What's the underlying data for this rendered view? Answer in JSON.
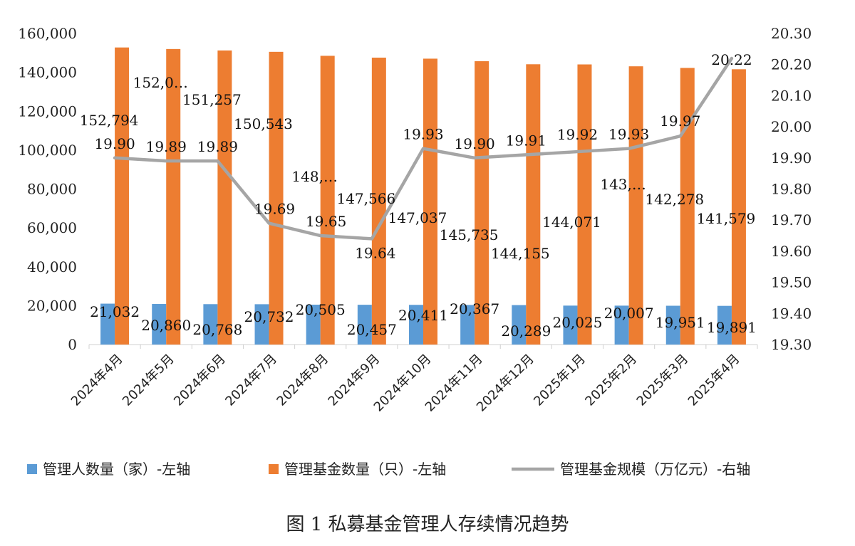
{
  "chart_data": {
    "type": "bar",
    "categories": [
      "2024年4月",
      "2024年5月",
      "2024年6月",
      "2024年7月",
      "2024年8月",
      "2024年9月",
      "2024年10月",
      "2024年11月",
      "2024年12月",
      "2025年1月",
      "2025年2月",
      "2025年3月",
      "2025年4月"
    ],
    "series": [
      {
        "name": "管理人数量（家）-左轴",
        "type": "bar",
        "axis": "left",
        "color": "#5b9bd5",
        "values": [
          21032,
          20860,
          20768,
          20732,
          20505,
          20457,
          20411,
          20367,
          20289,
          20025,
          20007,
          19951,
          19891
        ],
        "labels": [
          "21,032",
          "20,860",
          "20,768",
          "20,732",
          "20,505",
          "20,457",
          "20,411",
          "20,367",
          "20,289",
          "20,025",
          "20,007",
          "19,951",
          "19,891"
        ]
      },
      {
        "name": "管理基金数量（只）-左轴",
        "type": "bar",
        "axis": "left",
        "color": "#ed7d31",
        "values": [
          152794,
          152000,
          151257,
          150543,
          148500,
          147566,
          147037,
          145735,
          144155,
          144071,
          143100,
          142278,
          141579
        ],
        "labels": [
          "152,794",
          "152,0…",
          "151,257",
          "150,543",
          "148,…",
          "147,566",
          "147,037",
          "145,735",
          "144,155",
          "144,071",
          "143,…",
          "142,278",
          "141,579"
        ]
      },
      {
        "name": "管理基金规模（万亿元）-右轴",
        "type": "line",
        "axis": "right",
        "color": "#a5a5a5",
        "values": [
          19.9,
          19.89,
          19.89,
          19.69,
          19.65,
          19.64,
          19.93,
          19.9,
          19.91,
          19.92,
          19.93,
          19.97,
          20.22
        ],
        "labels": [
          "19.90",
          "19.89",
          "19.89",
          "19.69",
          "19.65",
          "19.64",
          "19.93",
          "19.90",
          "19.91",
          "19.92",
          "19.93",
          "19.97",
          "20.22"
        ]
      }
    ],
    "y_left": {
      "min": 0,
      "max": 160000,
      "step": 20000,
      "ticks": [
        "0",
        "20,000",
        "40,000",
        "60,000",
        "80,000",
        "100,000",
        "120,000",
        "140,000",
        "160,000"
      ]
    },
    "y_right": {
      "min": 19.3,
      "max": 20.3,
      "step": 0.1,
      "ticks": [
        "19.30",
        "19.40",
        "19.50",
        "19.60",
        "19.70",
        "19.80",
        "19.90",
        "20.00",
        "20.10",
        "20.20",
        "20.30"
      ]
    },
    "grid": false,
    "legend_position": "bottom"
  },
  "caption": "图 1  私募基金管理人存续情况趋势"
}
